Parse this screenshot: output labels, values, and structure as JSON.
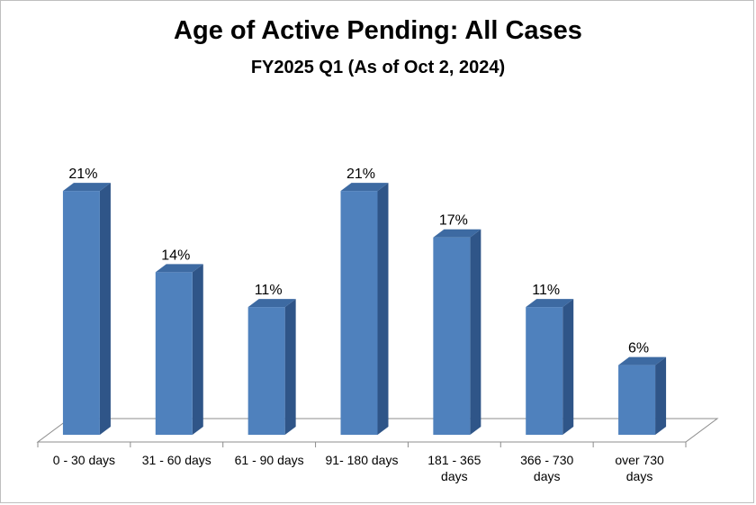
{
  "chart_data": {
    "type": "bar",
    "title": "Age of Active Pending: All Cases",
    "subtitle": "FY2025 Q1 (As of Oct 2, 2024)",
    "categories": [
      "0 - 30 days",
      "31 - 60 days",
      "61 - 90 days",
      "91- 180 days",
      "181 - 365 days",
      "366 - 730 days",
      "over 730 days"
    ],
    "category_lines": [
      [
        "0 - 30 days"
      ],
      [
        "31 - 60 days"
      ],
      [
        "61 - 90 days"
      ],
      [
        "91- 180 days"
      ],
      [
        "181 - 365",
        "days"
      ],
      [
        "366 - 730",
        "days"
      ],
      [
        "over 730",
        "days"
      ]
    ],
    "values": [
      21,
      14,
      11,
      21,
      17,
      11,
      6
    ],
    "data_labels": [
      "21%",
      "14%",
      "11%",
      "21%",
      "17%",
      "11%",
      "6%"
    ],
    "unit": "%",
    "ylim": [
      0,
      25
    ],
    "grid": false,
    "legend": "none",
    "colors": {
      "bar_front": "#4f81bd",
      "bar_side": "#2f5588",
      "bar_top": "#3d6aa2"
    }
  }
}
